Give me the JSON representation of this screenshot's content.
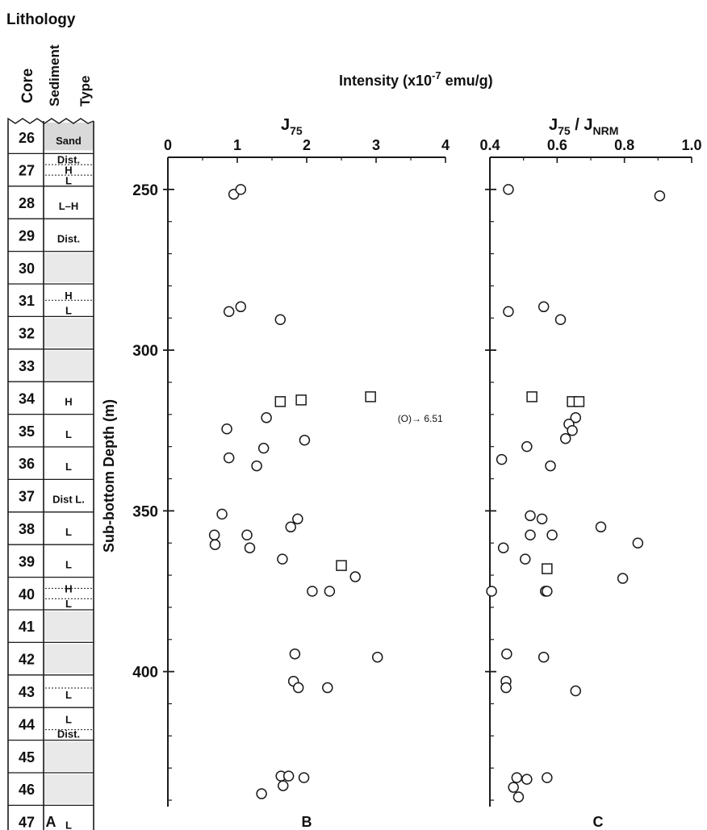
{
  "figure": {
    "lithology_title": "Lithology",
    "col_core": "Core",
    "col_sediment_line1": "Sediment",
    "col_sediment_line2": "Type",
    "intensity_title_main": "Intensity (x10",
    "intensity_title_exp": "-7",
    "intensity_title_unit": " emu/g)",
    "y_axis_label": "Sub-bottom Depth (m)",
    "panel_labels": [
      "A",
      "B",
      "C"
    ]
  },
  "colors": {
    "ink": "#1a1a1a",
    "paper": "#ffffff",
    "shade": "#e9e9e9"
  },
  "lithology": {
    "cores": [
      "26",
      "27",
      "28",
      "29",
      "30",
      "31",
      "32",
      "33",
      "34",
      "35",
      "36",
      "37",
      "38",
      "39",
      "40",
      "41",
      "42",
      "43",
      "44",
      "45",
      "46",
      "47"
    ],
    "sediment_labels": [
      {
        "core": "26",
        "text": "Sand"
      },
      {
        "core": "27",
        "text": "Dist."
      },
      {
        "core": "27",
        "text": "H"
      },
      {
        "core": "27",
        "text": "L"
      },
      {
        "core": "28",
        "text": "L–H"
      },
      {
        "core": "29",
        "text": "Dist."
      },
      {
        "core": "31",
        "text": "H"
      },
      {
        "core": "31",
        "text": "L"
      },
      {
        "core": "34",
        "text": "H"
      },
      {
        "core": "35",
        "text": "L"
      },
      {
        "core": "36",
        "text": "L"
      },
      {
        "core": "37",
        "text": "Dist L."
      },
      {
        "core": "38",
        "text": "L"
      },
      {
        "core": "39",
        "text": "L"
      },
      {
        "core": "40",
        "text": "H"
      },
      {
        "core": "40",
        "text": "L"
      },
      {
        "core": "43",
        "text": "L"
      },
      {
        "core": "44",
        "text": "L"
      },
      {
        "core": "44",
        "text": "Dist."
      },
      {
        "core": "47",
        "text": "L"
      }
    ],
    "shaded_cores": [
      "30",
      "32",
      "33",
      "41",
      "42",
      "45",
      "46"
    ]
  },
  "chart_data": [
    {
      "type": "scatter",
      "title": "J75",
      "xlim": [
        0,
        4
      ],
      "x_ticks": [
        "0",
        "1",
        "2",
        "3",
        "4"
      ],
      "ylim": [
        240,
        442
      ],
      "y_ticks": [
        "250",
        "300",
        "350",
        "400"
      ],
      "ylabel": "Sub-bottom Depth (m)",
      "annotation": {
        "text": "(O)→ 6.51",
        "x": 3.45,
        "depth": 321
      },
      "series": [
        {
          "marker": "circle",
          "points": [
            {
              "x": 0.95,
              "depth": 251.5
            },
            {
              "x": 1.05,
              "depth": 250
            },
            {
              "x": 0.88,
              "depth": 288
            },
            {
              "x": 1.05,
              "depth": 286.5
            },
            {
              "x": 1.62,
              "depth": 290.5
            },
            {
              "x": 1.42,
              "depth": 321
            },
            {
              "x": 0.85,
              "depth": 324.5
            },
            {
              "x": 1.97,
              "depth": 328
            },
            {
              "x": 1.38,
              "depth": 330.5
            },
            {
              "x": 0.88,
              "depth": 333.5
            },
            {
              "x": 1.28,
              "depth": 336
            },
            {
              "x": 0.78,
              "depth": 351
            },
            {
              "x": 1.87,
              "depth": 352.5
            },
            {
              "x": 1.77,
              "depth": 355
            },
            {
              "x": 0.67,
              "depth": 357.5
            },
            {
              "x": 1.14,
              "depth": 357.5
            },
            {
              "x": 0.68,
              "depth": 360.5
            },
            {
              "x": 1.18,
              "depth": 361.5
            },
            {
              "x": 1.65,
              "depth": 365
            },
            {
              "x": 2.7,
              "depth": 370.5
            },
            {
              "x": 2.08,
              "depth": 375
            },
            {
              "x": 2.33,
              "depth": 375
            },
            {
              "x": 1.83,
              "depth": 394.5
            },
            {
              "x": 3.02,
              "depth": 395.5
            },
            {
              "x": 1.81,
              "depth": 403
            },
            {
              "x": 1.88,
              "depth": 405
            },
            {
              "x": 2.3,
              "depth": 405
            },
            {
              "x": 1.63,
              "depth": 432.5
            },
            {
              "x": 1.74,
              "depth": 432.5
            },
            {
              "x": 1.96,
              "depth": 433
            },
            {
              "x": 1.66,
              "depth": 435.5
            },
            {
              "x": 1.35,
              "depth": 438
            }
          ]
        },
        {
          "marker": "square",
          "points": [
            {
              "x": 1.62,
              "depth": 316
            },
            {
              "x": 1.92,
              "depth": 315.5
            },
            {
              "x": 2.92,
              "depth": 314.5
            },
            {
              "x": 2.5,
              "depth": 367
            }
          ]
        }
      ]
    },
    {
      "type": "scatter",
      "title": "J75 / JNRM",
      "xlim": [
        0.4,
        1.0
      ],
      "x_ticks": [
        "0.4",
        "0.6",
        "0.8",
        "1.0"
      ],
      "ylim": [
        240,
        442
      ],
      "series": [
        {
          "marker": "circle",
          "points": [
            {
              "x": 0.455,
              "depth": 250
            },
            {
              "x": 0.905,
              "depth": 252
            },
            {
              "x": 0.455,
              "depth": 288
            },
            {
              "x": 0.56,
              "depth": 286.5
            },
            {
              "x": 0.61,
              "depth": 290.5
            },
            {
              "x": 0.655,
              "depth": 321
            },
            {
              "x": 0.635,
              "depth": 323
            },
            {
              "x": 0.645,
              "depth": 325
            },
            {
              "x": 0.625,
              "depth": 327.5
            },
            {
              "x": 0.51,
              "depth": 330
            },
            {
              "x": 0.435,
              "depth": 334
            },
            {
              "x": 0.58,
              "depth": 336
            },
            {
              "x": 0.52,
              "depth": 351.5
            },
            {
              "x": 0.555,
              "depth": 352.5
            },
            {
              "x": 0.73,
              "depth": 355
            },
            {
              "x": 0.52,
              "depth": 357.5
            },
            {
              "x": 0.585,
              "depth": 357.5
            },
            {
              "x": 0.84,
              "depth": 360
            },
            {
              "x": 0.44,
              "depth": 361.5
            },
            {
              "x": 0.505,
              "depth": 365
            },
            {
              "x": 0.795,
              "depth": 371
            },
            {
              "x": 0.405,
              "depth": 375
            },
            {
              "x": 0.565,
              "depth": 375
            },
            {
              "x": 0.57,
              "depth": 375
            },
            {
              "x": 0.45,
              "depth": 394.5
            },
            {
              "x": 0.56,
              "depth": 395.5
            },
            {
              "x": 0.448,
              "depth": 403
            },
            {
              "x": 0.448,
              "depth": 405
            },
            {
              "x": 0.655,
              "depth": 406
            },
            {
              "x": 0.48,
              "depth": 433
            },
            {
              "x": 0.51,
              "depth": 433.5
            },
            {
              "x": 0.57,
              "depth": 433
            },
            {
              "x": 0.47,
              "depth": 436
            },
            {
              "x": 0.485,
              "depth": 439
            }
          ]
        },
        {
          "marker": "square",
          "points": [
            {
              "x": 0.525,
              "depth": 314.5
            },
            {
              "x": 0.645,
              "depth": 316
            },
            {
              "x": 0.665,
              "depth": 316
            },
            {
              "x": 0.57,
              "depth": 368
            }
          ]
        }
      ]
    }
  ]
}
